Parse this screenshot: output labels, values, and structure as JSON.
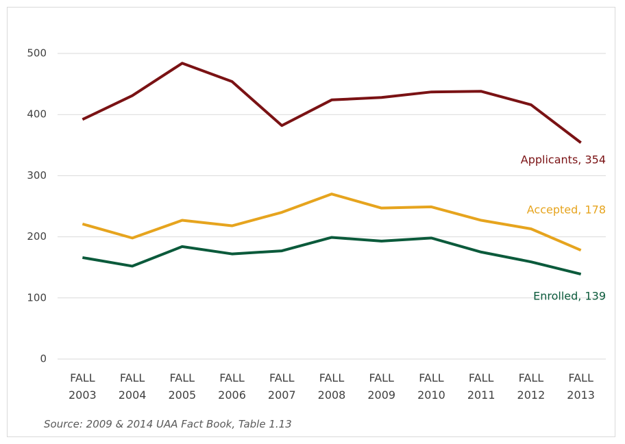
{
  "chart_data": {
    "type": "line",
    "categories": [
      "FALL 2003",
      "FALL 2004",
      "FALL 2005",
      "FALL 2006",
      "FALL 2007",
      "FALL 2008",
      "FALL 2009",
      "FALL 2010",
      "FALL 2011",
      "FALL 2012",
      "FALL 2013"
    ],
    "series": [
      {
        "name": "Applicants",
        "color": "#7a1214",
        "values": [
          392,
          431,
          484,
          454,
          382,
          424,
          428,
          437,
          438,
          416,
          354
        ],
        "value_labels": [
          null,
          null,
          null,
          null,
          null,
          null,
          null,
          null,
          null,
          null,
          "Applicants, 354"
        ]
      },
      {
        "name": "Accepted",
        "color": "#e6a41e",
        "values": [
          221,
          198,
          227,
          218,
          240,
          270,
          247,
          249,
          227,
          213,
          178
        ],
        "value_labels": [
          null,
          null,
          null,
          null,
          null,
          null,
          null,
          null,
          null,
          null,
          "Accepted, 178"
        ]
      },
      {
        "name": "Enrolled",
        "color": "#0b5a3b",
        "values": [
          166,
          152,
          184,
          172,
          177,
          199,
          193,
          198,
          175,
          159,
          139
        ],
        "value_labels": [
          null,
          null,
          null,
          null,
          null,
          null,
          null,
          null,
          null,
          null,
          "Enrolled, 139"
        ]
      }
    ],
    "ylim": [
      0,
      500
    ],
    "yticks": [
      0,
      100,
      200,
      300,
      400,
      500
    ],
    "grid": true,
    "source": "Source: 2009 & 2014 UAA Fact Book, Table 1.13"
  }
}
